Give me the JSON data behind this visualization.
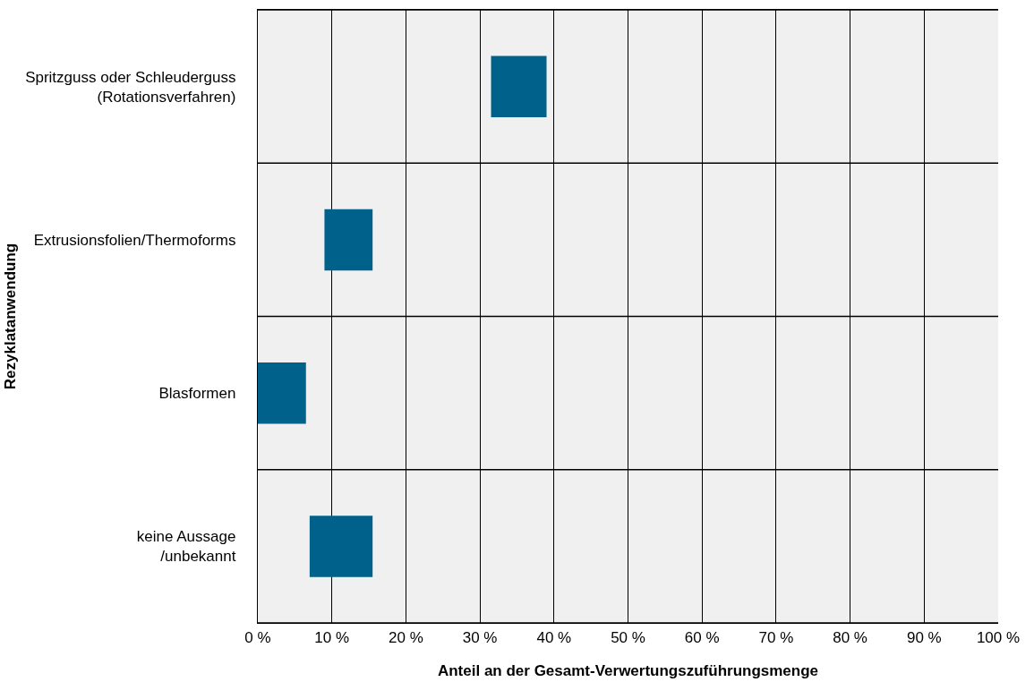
{
  "chart_data": {
    "type": "bar",
    "orientation": "horizontal",
    "xlabel": "Anteil an der Gesamt-Verwertungszuführungsmenge",
    "ylabel": "Rezyklatanwendung",
    "categories": [
      "Spritzguss oder Schleuderguss\n(Rotationsverfahren)",
      "Extrusionsfolien/Thermoforms",
      "Blasformen",
      "keine Aussage\n/unbekannt"
    ],
    "base": [
      31.5,
      9,
      0,
      7
    ],
    "values": [
      7.5,
      6.5,
      6.5,
      8.5
    ],
    "color": "#00628a",
    "xlim": [
      0,
      100
    ],
    "xticks": [
      {
        "value": 0,
        "label": "0 %"
      },
      {
        "value": 10,
        "label": "10 %"
      },
      {
        "value": 20,
        "label": "20 %"
      },
      {
        "value": 30,
        "label": "30 %"
      },
      {
        "value": 40,
        "label": "40 %"
      },
      {
        "value": 50,
        "label": "50 %"
      },
      {
        "value": 60,
        "label": "60 %"
      },
      {
        "value": 70,
        "label": "70 %"
      },
      {
        "value": 80,
        "label": "80 %"
      },
      {
        "value": 90,
        "label": "90 %"
      },
      {
        "value": 100,
        "label": "100 %"
      }
    ],
    "grid": true
  }
}
